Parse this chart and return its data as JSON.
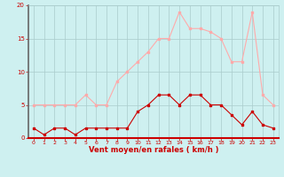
{
  "x": [
    0,
    1,
    2,
    3,
    4,
    5,
    6,
    7,
    8,
    9,
    10,
    11,
    12,
    13,
    14,
    15,
    16,
    17,
    18,
    19,
    20,
    21,
    22,
    23
  ],
  "mean_wind": [
    1.5,
    0.5,
    1.5,
    1.5,
    0.5,
    1.5,
    1.5,
    1.5,
    1.5,
    1.5,
    4.0,
    5.0,
    6.5,
    6.5,
    5.0,
    6.5,
    6.5,
    5.0,
    5.0,
    3.5,
    2.0,
    4.0,
    2.0,
    1.5
  ],
  "gust_wind": [
    5.0,
    5.0,
    5.0,
    5.0,
    5.0,
    6.5,
    5.0,
    5.0,
    8.5,
    10.0,
    11.5,
    13.0,
    15.0,
    15.0,
    19.0,
    16.5,
    16.5,
    16.0,
    15.0,
    11.5,
    11.5,
    19.0,
    6.5,
    5.0
  ],
  "mean_color": "#cc0000",
  "gust_color": "#ffaaaa",
  "bg_color": "#cef0f0",
  "grid_color": "#aacccc",
  "xlabel": "Vent moyen/en rafales ( km/h )",
  "ylim": [
    0,
    20
  ],
  "xlim": [
    -0.5,
    23.5
  ],
  "yticks": [
    0,
    5,
    10,
    15,
    20
  ],
  "xticks": [
    0,
    1,
    2,
    3,
    4,
    5,
    6,
    7,
    8,
    9,
    10,
    11,
    12,
    13,
    14,
    15,
    16,
    17,
    18,
    19,
    20,
    21,
    22,
    23
  ],
  "tick_color": "#cc0000",
  "label_color": "#cc0000",
  "markersize": 2.0,
  "linewidth": 0.8
}
